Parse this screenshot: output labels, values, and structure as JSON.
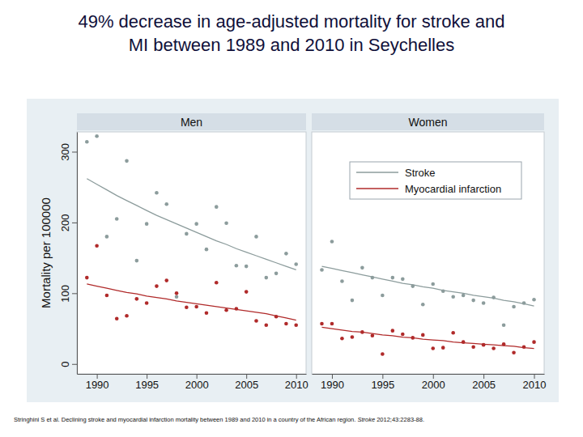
{
  "title": [
    "49% decrease in age-adjusted mortality for stroke and",
    "MI between 1989 and 2010 in Seychelles"
  ],
  "source": [
    "Stringhini S et al. Declining stroke and myocardial infarction mortality between 1989 and 2010 in a country of the African region. ",
    "Stroke",
    " 2012;43:2283-88."
  ],
  "chart_data": [
    {
      "type": "scatter",
      "title": "Men",
      "y_label": "Mortality per 100000",
      "x": [
        1989,
        1990,
        1991,
        1992,
        1993,
        1994,
        1995,
        1996,
        1997,
        1998,
        1999,
        2000,
        2001,
        2002,
        2003,
        2004,
        2005,
        2006,
        2007,
        2008,
        2009,
        2010
      ],
      "xlim": [
        1988,
        2011
      ],
      "xticks": [
        1990,
        1995,
        2000,
        2005,
        2010
      ],
      "ylim": [
        -14,
        328
      ],
      "yticks": [
        0,
        100,
        200,
        300
      ],
      "series": [
        {
          "color": "#8c9c9c",
          "marker": "circle",
          "values": [
            314,
            322,
            180,
            205,
            287,
            146,
            198,
            242,
            226,
            95,
            184,
            198,
            162,
            222,
            199,
            139,
            138,
            180,
            122,
            128,
            156,
            141
          ],
          "fit": [
            262,
            254,
            246,
            238,
            231,
            224,
            217,
            210,
            204,
            198,
            192,
            186,
            180,
            174,
            169,
            163,
            158,
            153,
            148,
            143,
            138,
            133
          ]
        },
        {
          "color": "#b02a2a",
          "marker": "circle",
          "values": [
            122,
            167,
            97,
            64,
            68,
            92,
            86,
            110,
            118,
            100,
            80,
            81,
            72,
            115,
            76,
            78,
            102,
            61,
            55,
            67,
            57,
            55
          ],
          "fit": [
            113,
            110,
            107,
            104,
            101,
            99,
            96,
            94,
            92,
            89,
            87,
            85,
            83,
            81,
            79,
            77,
            75,
            73,
            71,
            68,
            65,
            62
          ]
        }
      ]
    },
    {
      "type": "scatter",
      "title": "Women",
      "legend": "top-right",
      "x": [
        1989,
        1990,
        1991,
        1992,
        1993,
        1994,
        1995,
        1996,
        1997,
        1998,
        1999,
        2000,
        2001,
        2002,
        2003,
        2004,
        2005,
        2006,
        2007,
        2008,
        2009,
        2010
      ],
      "xlim": [
        1988,
        2011
      ],
      "xticks": [
        1990,
        1995,
        2000,
        2005,
        2010
      ],
      "ylim": [
        -14,
        328
      ],
      "series": [
        {
          "name": "Stroke",
          "color": "#8c9c9c",
          "marker": "circle",
          "values": [
            133,
            173,
            117,
            90,
            136,
            122,
            97,
            122,
            120,
            110,
            84,
            113,
            103,
            95,
            97,
            90,
            86,
            94,
            55,
            81,
            86,
            91
          ],
          "fit": [
            138,
            135,
            132,
            129,
            126,
            123,
            120,
            117,
            114,
            112,
            109,
            107,
            104,
            102,
            100,
            97,
            95,
            93,
            90,
            88,
            85,
            82
          ]
        },
        {
          "name": "Myocardial infarction",
          "color": "#b02a2a",
          "marker": "circle",
          "values": [
            57,
            57,
            36,
            38,
            45,
            40,
            14,
            47,
            42,
            37,
            41,
            22,
            23,
            44,
            31,
            24,
            27,
            22,
            28,
            16,
            24,
            31
          ],
          "fit": [
            52,
            50,
            48,
            46,
            45,
            43,
            41,
            40,
            38,
            37,
            35,
            34,
            33,
            31,
            30,
            29,
            28,
            27,
            26,
            25,
            23,
            22
          ]
        }
      ]
    }
  ]
}
